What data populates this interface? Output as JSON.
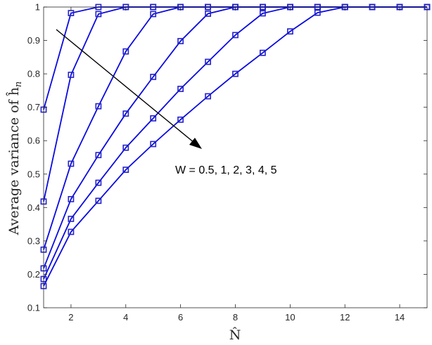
{
  "chart_data": {
    "type": "line",
    "xlabel": "N̂",
    "ylabel": "Average variance of ĥ",
    "ylabel_sub": "n",
    "xlim": [
      1,
      15
    ],
    "ylim": [
      0.1,
      1.0
    ],
    "xticks": [
      "2",
      "4",
      "6",
      "8",
      "10",
      "12",
      "14"
    ],
    "yticks": [
      "0.1",
      "0.2",
      "0.3",
      "0.4",
      "0.5",
      "0.6",
      "0.7",
      "0.8",
      "0.9",
      "1"
    ],
    "grid": false,
    "annotation": "W = 0.5, 1, 2, 3, 4, 5",
    "series": [
      {
        "x": [
          1,
          2,
          3,
          4,
          5,
          6,
          7,
          8,
          9,
          10,
          11,
          12,
          13,
          14,
          15
        ],
        "values": [
          0.693,
          0.982,
          1.0,
          1.0,
          1.0,
          1.0,
          1.0,
          1.0,
          1.0,
          1.0,
          1.0,
          1.0,
          1.0,
          1.0,
          1.0
        ]
      },
      {
        "x": [
          1,
          2,
          3,
          4,
          5,
          6,
          7,
          8,
          9,
          10,
          11,
          12,
          13,
          14,
          15
        ],
        "values": [
          0.418,
          0.797,
          0.979,
          1.0,
          1.0,
          1.0,
          1.0,
          1.0,
          1.0,
          1.0,
          1.0,
          1.0,
          1.0,
          1.0,
          1.0
        ]
      },
      {
        "x": [
          1,
          2,
          3,
          4,
          5,
          6,
          7,
          8,
          9,
          10,
          11,
          12,
          13,
          14,
          15
        ],
        "values": [
          0.274,
          0.531,
          0.703,
          0.867,
          0.979,
          1.0,
          1.0,
          1.0,
          1.0,
          1.0,
          1.0,
          1.0,
          1.0,
          1.0,
          1.0
        ]
      },
      {
        "x": [
          1,
          2,
          3,
          4,
          5,
          6,
          7,
          8,
          9,
          10,
          11,
          12,
          13,
          14,
          15
        ],
        "values": [
          0.218,
          0.425,
          0.557,
          0.681,
          0.791,
          0.898,
          0.98,
          1.0,
          1.0,
          1.0,
          1.0,
          1.0,
          1.0,
          1.0,
          1.0
        ]
      },
      {
        "x": [
          1,
          2,
          3,
          4,
          5,
          6,
          7,
          8,
          9,
          10,
          11,
          12,
          13,
          14,
          15
        ],
        "values": [
          0.186,
          0.366,
          0.474,
          0.579,
          0.667,
          0.755,
          0.836,
          0.916,
          0.981,
          1.0,
          1.0,
          1.0,
          1.0,
          1.0,
          1.0
        ]
      },
      {
        "x": [
          1,
          2,
          3,
          4,
          5,
          6,
          7,
          8,
          9,
          10,
          11,
          12,
          13,
          14,
          15
        ],
        "values": [
          0.165,
          0.327,
          0.42,
          0.513,
          0.59,
          0.663,
          0.733,
          0.8,
          0.863,
          0.927,
          0.983,
          1.0,
          1.0,
          1.0,
          1.0
        ]
      }
    ],
    "colors": {
      "line": "#0a0ae0",
      "marker": "#2323c8",
      "arrow": "#000000",
      "axis": "#262626"
    }
  }
}
